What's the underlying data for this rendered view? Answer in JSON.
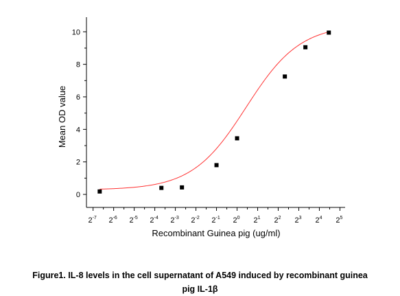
{
  "chart_data": {
    "type": "scatter",
    "xlabel": "Recombinant Guinea pig (ug/ml)",
    "ylabel": "Mean OD value",
    "x_scale": "log2",
    "x_tick_base": "2",
    "x_tick_exponents": [
      "-7",
      "-6",
      "-5",
      "-4",
      "-3",
      "-2",
      "-1",
      "0",
      "1",
      "2",
      "3",
      "4",
      "5"
    ],
    "y_ticks": [
      "0",
      "2",
      "4",
      "6",
      "8",
      "10"
    ],
    "xlim": [
      0.00625,
      38.1
    ],
    "ylim": [
      -0.8,
      10.9
    ],
    "grid": false,
    "legend": "none",
    "series": [
      {
        "x": [
          0.00977,
          0.0781,
          0.156,
          0.5,
          1.0,
          5.0,
          10.0,
          22.0
        ],
        "y": [
          0.18,
          0.4,
          0.43,
          1.8,
          3.45,
          7.25,
          9.05,
          9.95
        ],
        "marker": "square",
        "color": "#000000"
      }
    ],
    "fit_curve": {
      "model": "logistic",
      "bottom": 0.28,
      "top": 10.45,
      "ec50": 1.36,
      "hill": 1.1,
      "color": "#ff3030"
    }
  },
  "caption": {
    "line1": "Figure1. IL-8 levels in the cell supernatant of A549 induced by recombinant guinea",
    "line2": "pig IL-1β"
  }
}
